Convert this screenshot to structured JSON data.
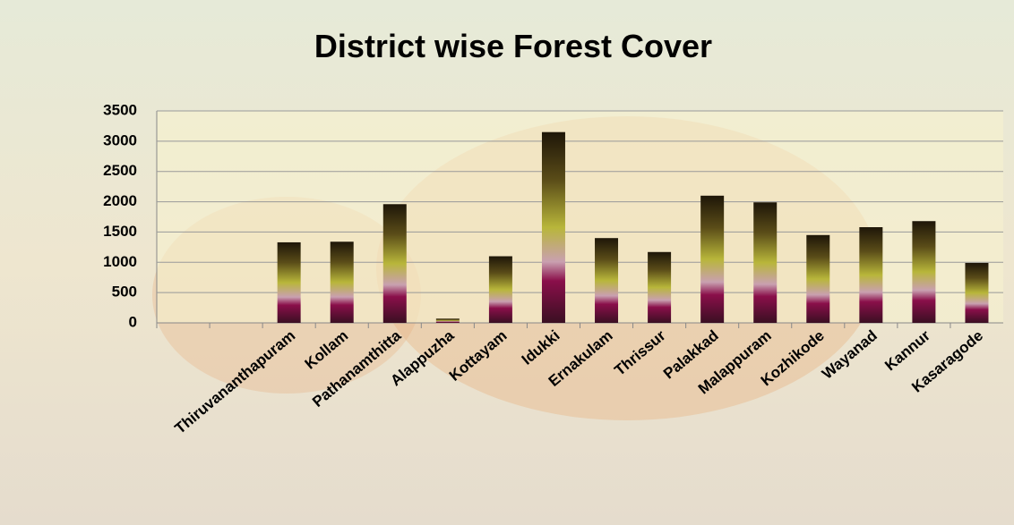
{
  "chart_data": {
    "type": "bar",
    "title": "District wise Forest Cover",
    "categories": [
      null,
      null,
      "Thiruvananthapuram",
      "Kollam",
      "Pathanamthitta",
      "Alappuzha",
      "Kottayam",
      "Idukki",
      "Ernakulam",
      "Thrissur",
      "Palakkad",
      "Malappuram",
      "Kozhikode",
      "Wayanad",
      "Kannur",
      "Kasaragode"
    ],
    "values": [
      null,
      null,
      1330,
      1340,
      1960,
      70,
      1100,
      3150,
      1400,
      1170,
      2100,
      1990,
      1450,
      1580,
      1680,
      990
    ],
    "ylim": [
      0,
      3500
    ],
    "yticks": [
      0,
      500,
      1000,
      1500,
      2000,
      2500,
      3000,
      3500
    ],
    "grid": true
  }
}
